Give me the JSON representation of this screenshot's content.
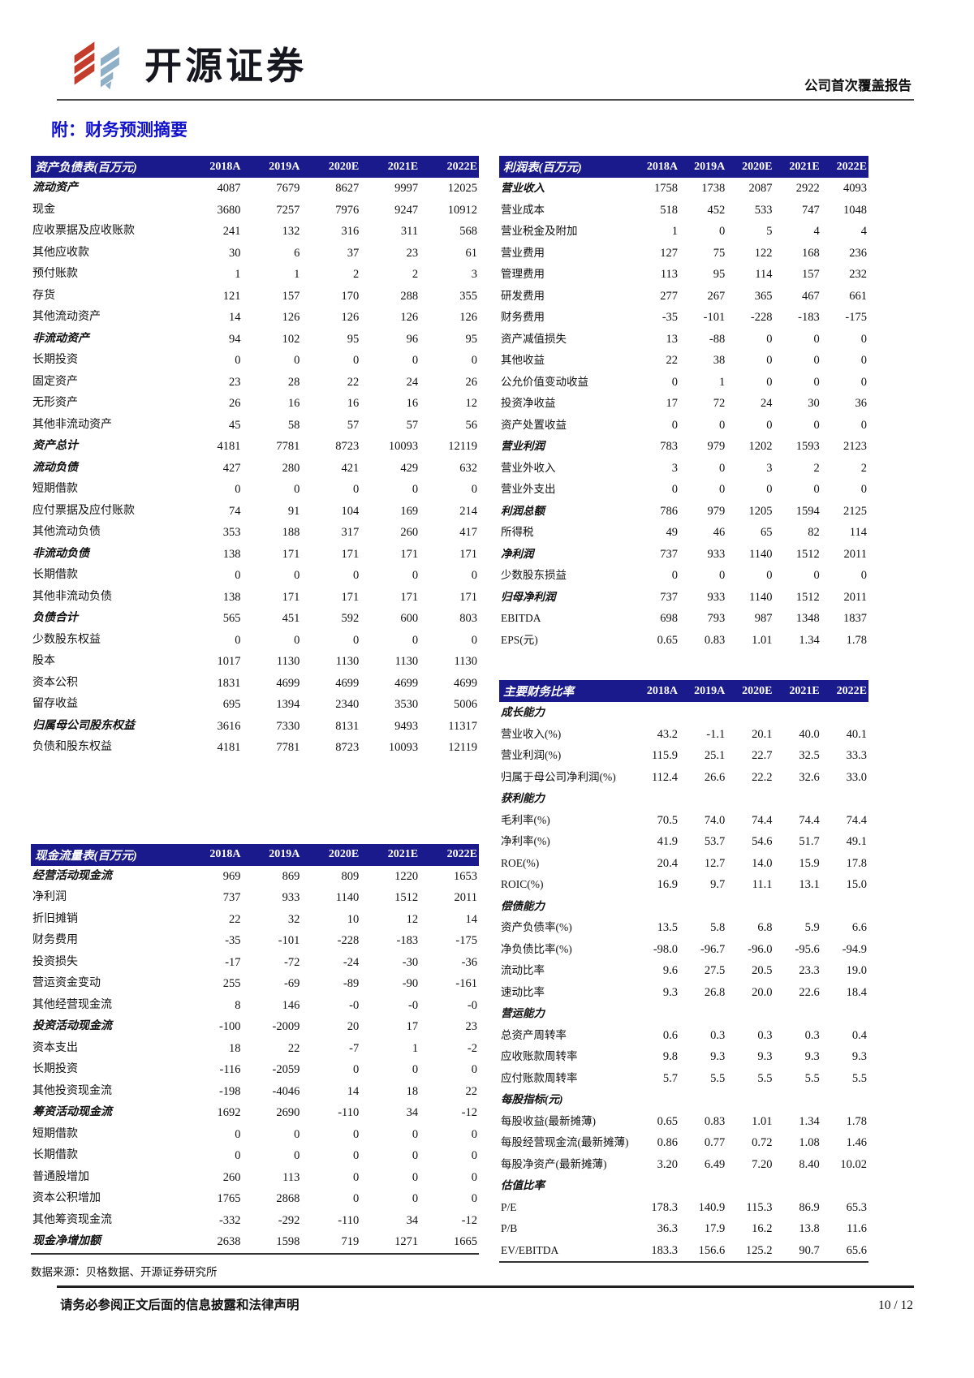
{
  "header": {
    "brand": "开源证券",
    "report_type": "公司首次覆盖报告"
  },
  "page_title": "附：财务预测摘要",
  "years": [
    "2018A",
    "2019A",
    "2020E",
    "2021E",
    "2022E"
  ],
  "tables": {
    "balance_sheet": {
      "title": "资产负债表(百万元)",
      "rows": [
        {
          "label": "流动资产",
          "bold": true,
          "values": [
            "4087",
            "7679",
            "8627",
            "9997",
            "12025"
          ]
        },
        {
          "label": "现金",
          "bold": false,
          "values": [
            "3680",
            "7257",
            "7976",
            "9247",
            "10912"
          ]
        },
        {
          "label": "应收票据及应收账款",
          "bold": false,
          "values": [
            "241",
            "132",
            "316",
            "311",
            "568"
          ]
        },
        {
          "label": "其他应收款",
          "bold": false,
          "values": [
            "30",
            "6",
            "37",
            "23",
            "61"
          ]
        },
        {
          "label": "预付账款",
          "bold": false,
          "values": [
            "1",
            "1",
            "2",
            "2",
            "3"
          ]
        },
        {
          "label": "存货",
          "bold": false,
          "values": [
            "121",
            "157",
            "170",
            "288",
            "355"
          ]
        },
        {
          "label": "其他流动资产",
          "bold": false,
          "values": [
            "14",
            "126",
            "126",
            "126",
            "126"
          ]
        },
        {
          "label": "非流动资产",
          "bold": true,
          "values": [
            "94",
            "102",
            "95",
            "96",
            "95"
          ]
        },
        {
          "label": "长期投资",
          "bold": false,
          "values": [
            "0",
            "0",
            "0",
            "0",
            "0"
          ]
        },
        {
          "label": "固定资产",
          "bold": false,
          "values": [
            "23",
            "28",
            "22",
            "24",
            "26"
          ]
        },
        {
          "label": "无形资产",
          "bold": false,
          "values": [
            "26",
            "16",
            "16",
            "16",
            "12"
          ]
        },
        {
          "label": "其他非流动资产",
          "bold": false,
          "values": [
            "45",
            "58",
            "57",
            "57",
            "56"
          ]
        },
        {
          "label": "资产总计",
          "bold": true,
          "values": [
            "4181",
            "7781",
            "8723",
            "10093",
            "12119"
          ]
        },
        {
          "label": "流动负债",
          "bold": true,
          "values": [
            "427",
            "280",
            "421",
            "429",
            "632"
          ]
        },
        {
          "label": "短期借款",
          "bold": false,
          "values": [
            "0",
            "0",
            "0",
            "0",
            "0"
          ]
        },
        {
          "label": "应付票据及应付账款",
          "bold": false,
          "values": [
            "74",
            "91",
            "104",
            "169",
            "214"
          ]
        },
        {
          "label": "其他流动负债",
          "bold": false,
          "values": [
            "353",
            "188",
            "317",
            "260",
            "417"
          ]
        },
        {
          "label": "非流动负债",
          "bold": true,
          "values": [
            "138",
            "171",
            "171",
            "171",
            "171"
          ]
        },
        {
          "label": "长期借款",
          "bold": false,
          "values": [
            "0",
            "0",
            "0",
            "0",
            "0"
          ]
        },
        {
          "label": "其他非流动负债",
          "bold": false,
          "values": [
            "138",
            "171",
            "171",
            "171",
            "171"
          ]
        },
        {
          "label": "负债合计",
          "bold": true,
          "values": [
            "565",
            "451",
            "592",
            "600",
            "803"
          ]
        },
        {
          "label": "少数股东权益",
          "bold": false,
          "values": [
            "0",
            "0",
            "0",
            "0",
            "0"
          ]
        },
        {
          "label": "股本",
          "bold": false,
          "values": [
            "1017",
            "1130",
            "1130",
            "1130",
            "1130"
          ]
        },
        {
          "label": "资本公积",
          "bold": false,
          "values": [
            "1831",
            "4699",
            "4699",
            "4699",
            "4699"
          ]
        },
        {
          "label": "留存收益",
          "bold": false,
          "values": [
            "695",
            "1394",
            "2340",
            "3530",
            "5006"
          ]
        },
        {
          "label": "归属母公司股东权益",
          "bold": true,
          "values": [
            "3616",
            "7330",
            "8131",
            "9493",
            "11317"
          ]
        },
        {
          "label": "负债和股东权益",
          "bold": false,
          "values": [
            "4181",
            "7781",
            "8723",
            "10093",
            "12119"
          ]
        }
      ]
    },
    "cash_flow": {
      "title": "现金流量表(百万元)",
      "rows": [
        {
          "label": "经营活动现金流",
          "bold": true,
          "values": [
            "969",
            "869",
            "809",
            "1220",
            "1653"
          ]
        },
        {
          "label": "净利润",
          "bold": false,
          "values": [
            "737",
            "933",
            "1140",
            "1512",
            "2011"
          ]
        },
        {
          "label": "折旧摊销",
          "bold": false,
          "values": [
            "22",
            "32",
            "10",
            "12",
            "14"
          ]
        },
        {
          "label": "财务费用",
          "bold": false,
          "values": [
            "-35",
            "-101",
            "-228",
            "-183",
            "-175"
          ]
        },
        {
          "label": "投资损失",
          "bold": false,
          "values": [
            "-17",
            "-72",
            "-24",
            "-30",
            "-36"
          ]
        },
        {
          "label": "营运资金变动",
          "bold": false,
          "values": [
            "255",
            "-69",
            "-89",
            "-90",
            "-161"
          ]
        },
        {
          "label": "其他经营现金流",
          "bold": false,
          "values": [
            "8",
            "146",
            "-0",
            "-0",
            "-0"
          ]
        },
        {
          "label": "投资活动现金流",
          "bold": true,
          "values": [
            "-100",
            "-2009",
            "20",
            "17",
            "23"
          ]
        },
        {
          "label": "资本支出",
          "bold": false,
          "values": [
            "18",
            "22",
            "-7",
            "1",
            "-2"
          ]
        },
        {
          "label": "长期投资",
          "bold": false,
          "values": [
            "-116",
            "-2059",
            "0",
            "0",
            "0"
          ]
        },
        {
          "label": "其他投资现金流",
          "bold": false,
          "values": [
            "-198",
            "-4046",
            "14",
            "18",
            "22"
          ]
        },
        {
          "label": "筹资活动现金流",
          "bold": true,
          "values": [
            "1692",
            "2690",
            "-110",
            "34",
            "-12"
          ]
        },
        {
          "label": "短期借款",
          "bold": false,
          "values": [
            "0",
            "0",
            "0",
            "0",
            "0"
          ]
        },
        {
          "label": "长期借款",
          "bold": false,
          "values": [
            "0",
            "0",
            "0",
            "0",
            "0"
          ]
        },
        {
          "label": "普通股增加",
          "bold": false,
          "values": [
            "260",
            "113",
            "0",
            "0",
            "0"
          ]
        },
        {
          "label": "资本公积增加",
          "bold": false,
          "values": [
            "1765",
            "2868",
            "0",
            "0",
            "0"
          ]
        },
        {
          "label": "其他筹资现金流",
          "bold": false,
          "values": [
            "-332",
            "-292",
            "-110",
            "34",
            "-12"
          ]
        },
        {
          "label": "现金净增加额",
          "bold": true,
          "values": [
            "2638",
            "1598",
            "719",
            "1271",
            "1665"
          ]
        }
      ]
    },
    "income": {
      "title": "利润表(百万元)",
      "rows": [
        {
          "label": "营业收入",
          "bold": true,
          "values": [
            "1758",
            "1738",
            "2087",
            "2922",
            "4093"
          ]
        },
        {
          "label": "营业成本",
          "bold": false,
          "values": [
            "518",
            "452",
            "533",
            "747",
            "1048"
          ]
        },
        {
          "label": "营业税金及附加",
          "bold": false,
          "values": [
            "1",
            "0",
            "5",
            "4",
            "4"
          ]
        },
        {
          "label": "营业费用",
          "bold": false,
          "values": [
            "127",
            "75",
            "122",
            "168",
            "236"
          ]
        },
        {
          "label": "管理费用",
          "bold": false,
          "values": [
            "113",
            "95",
            "114",
            "157",
            "232"
          ]
        },
        {
          "label": "研发费用",
          "bold": false,
          "values": [
            "277",
            "267",
            "365",
            "467",
            "661"
          ]
        },
        {
          "label": "财务费用",
          "bold": false,
          "values": [
            "-35",
            "-101",
            "-228",
            "-183",
            "-175"
          ]
        },
        {
          "label": "资产减值损失",
          "bold": false,
          "values": [
            "13",
            "-88",
            "0",
            "0",
            "0"
          ]
        },
        {
          "label": "其他收益",
          "bold": false,
          "values": [
            "22",
            "38",
            "0",
            "0",
            "0"
          ]
        },
        {
          "label": "公允价值变动收益",
          "bold": false,
          "values": [
            "0",
            "1",
            "0",
            "0",
            "0"
          ]
        },
        {
          "label": "投资净收益",
          "bold": false,
          "values": [
            "17",
            "72",
            "24",
            "30",
            "36"
          ]
        },
        {
          "label": "资产处置收益",
          "bold": false,
          "values": [
            "0",
            "0",
            "0",
            "0",
            "0"
          ]
        },
        {
          "label": "营业利润",
          "bold": true,
          "values": [
            "783",
            "979",
            "1202",
            "1593",
            "2123"
          ]
        },
        {
          "label": "营业外收入",
          "bold": false,
          "values": [
            "3",
            "0",
            "3",
            "2",
            "2"
          ]
        },
        {
          "label": "营业外支出",
          "bold": false,
          "values": [
            "0",
            "0",
            "0",
            "0",
            "0"
          ]
        },
        {
          "label": "利润总额",
          "bold": true,
          "values": [
            "786",
            "979",
            "1205",
            "1594",
            "2125"
          ]
        },
        {
          "label": "所得税",
          "bold": false,
          "values": [
            "49",
            "46",
            "65",
            "82",
            "114"
          ]
        },
        {
          "label": "净利润",
          "bold": true,
          "values": [
            "737",
            "933",
            "1140",
            "1512",
            "2011"
          ]
        },
        {
          "label": "少数股东损益",
          "bold": false,
          "values": [
            "0",
            "0",
            "0",
            "0",
            "0"
          ]
        },
        {
          "label": "归母净利润",
          "bold": true,
          "values": [
            "737",
            "933",
            "1140",
            "1512",
            "2011"
          ]
        },
        {
          "label": "EBITDA",
          "bold": false,
          "values": [
            "698",
            "793",
            "987",
            "1348",
            "1837"
          ]
        },
        {
          "label": "EPS(元)",
          "bold": false,
          "values": [
            "0.65",
            "0.83",
            "1.01",
            "1.34",
            "1.78"
          ]
        }
      ]
    },
    "ratios": {
      "title": "主要财务比率",
      "rows": [
        {
          "label": "成长能力",
          "bold": true,
          "values": [
            "",
            "",
            "",
            "",
            ""
          ]
        },
        {
          "label": "营业收入(%)",
          "bold": false,
          "values": [
            "43.2",
            "-1.1",
            "20.1",
            "40.0",
            "40.1"
          ]
        },
        {
          "label": "营业利润(%)",
          "bold": false,
          "values": [
            "115.9",
            "25.1",
            "22.7",
            "32.5",
            "33.3"
          ]
        },
        {
          "label": "归属于母公司净利润(%)",
          "bold": false,
          "values": [
            "112.4",
            "26.6",
            "22.2",
            "32.6",
            "33.0"
          ]
        },
        {
          "label": "获利能力",
          "bold": true,
          "values": [
            "",
            "",
            "",
            "",
            ""
          ]
        },
        {
          "label": "毛利率(%)",
          "bold": false,
          "values": [
            "70.5",
            "74.0",
            "74.4",
            "74.4",
            "74.4"
          ]
        },
        {
          "label": "净利率(%)",
          "bold": false,
          "values": [
            "41.9",
            "53.7",
            "54.6",
            "51.7",
            "49.1"
          ]
        },
        {
          "label": "ROE(%)",
          "bold": false,
          "values": [
            "20.4",
            "12.7",
            "14.0",
            "15.9",
            "17.8"
          ]
        },
        {
          "label": "ROIC(%)",
          "bold": false,
          "values": [
            "16.9",
            "9.7",
            "11.1",
            "13.1",
            "15.0"
          ]
        },
        {
          "label": "偿债能力",
          "bold": true,
          "values": [
            "",
            "",
            "",
            "",
            ""
          ]
        },
        {
          "label": "资产负债率(%)",
          "bold": false,
          "values": [
            "13.5",
            "5.8",
            "6.8",
            "5.9",
            "6.6"
          ]
        },
        {
          "label": "净负债比率(%)",
          "bold": false,
          "values": [
            "-98.0",
            "-96.7",
            "-96.0",
            "-95.6",
            "-94.9"
          ]
        },
        {
          "label": "流动比率",
          "bold": false,
          "values": [
            "9.6",
            "27.5",
            "20.5",
            "23.3",
            "19.0"
          ]
        },
        {
          "label": "速动比率",
          "bold": false,
          "values": [
            "9.3",
            "26.8",
            "20.0",
            "22.6",
            "18.4"
          ]
        },
        {
          "label": "营运能力",
          "bold": true,
          "values": [
            "",
            "",
            "",
            "",
            ""
          ]
        },
        {
          "label": "总资产周转率",
          "bold": false,
          "values": [
            "0.6",
            "0.3",
            "0.3",
            "0.3",
            "0.4"
          ]
        },
        {
          "label": "应收账款周转率",
          "bold": false,
          "values": [
            "9.8",
            "9.3",
            "9.3",
            "9.3",
            "9.3"
          ]
        },
        {
          "label": "应付账款周转率",
          "bold": false,
          "values": [
            "5.7",
            "5.5",
            "5.5",
            "5.5",
            "5.5"
          ]
        },
        {
          "label": "每股指标(元)",
          "bold": true,
          "values": [
            "",
            "",
            "",
            "",
            ""
          ]
        },
        {
          "label": "每股收益(最新摊薄)",
          "bold": false,
          "values": [
            "0.65",
            "0.83",
            "1.01",
            "1.34",
            "1.78"
          ]
        },
        {
          "label": "每股经营现金流(最新摊薄)",
          "bold": false,
          "values": [
            "0.86",
            "0.77",
            "0.72",
            "1.08",
            "1.46"
          ]
        },
        {
          "label": "每股净资产(最新摊薄)",
          "bold": false,
          "values": [
            "3.20",
            "6.49",
            "7.20",
            "8.40",
            "10.02"
          ]
        },
        {
          "label": "估值比率",
          "bold": true,
          "values": [
            "",
            "",
            "",
            "",
            ""
          ]
        },
        {
          "label": "P/E",
          "bold": false,
          "values": [
            "178.3",
            "140.9",
            "115.3",
            "86.9",
            "65.3"
          ]
        },
        {
          "label": "P/B",
          "bold": false,
          "values": [
            "36.3",
            "17.9",
            "16.2",
            "13.8",
            "11.6"
          ]
        },
        {
          "label": "EV/EBITDA",
          "bold": false,
          "values": [
            "183.3",
            "156.6",
            "125.2",
            "90.7",
            "65.6"
          ]
        }
      ]
    }
  },
  "source_note": "数据来源：贝格数据、开源证券研究所",
  "footer": {
    "disclaimer": "请务必参阅正文后面的信息披露和法律声明",
    "page_number": "10 / 12"
  },
  "colors": {
    "table_header_bg": "#1a1a8c",
    "title_blue": "#1212cc",
    "logo_red": "#c43c2c",
    "logo_blue": "#8fafc6"
  }
}
